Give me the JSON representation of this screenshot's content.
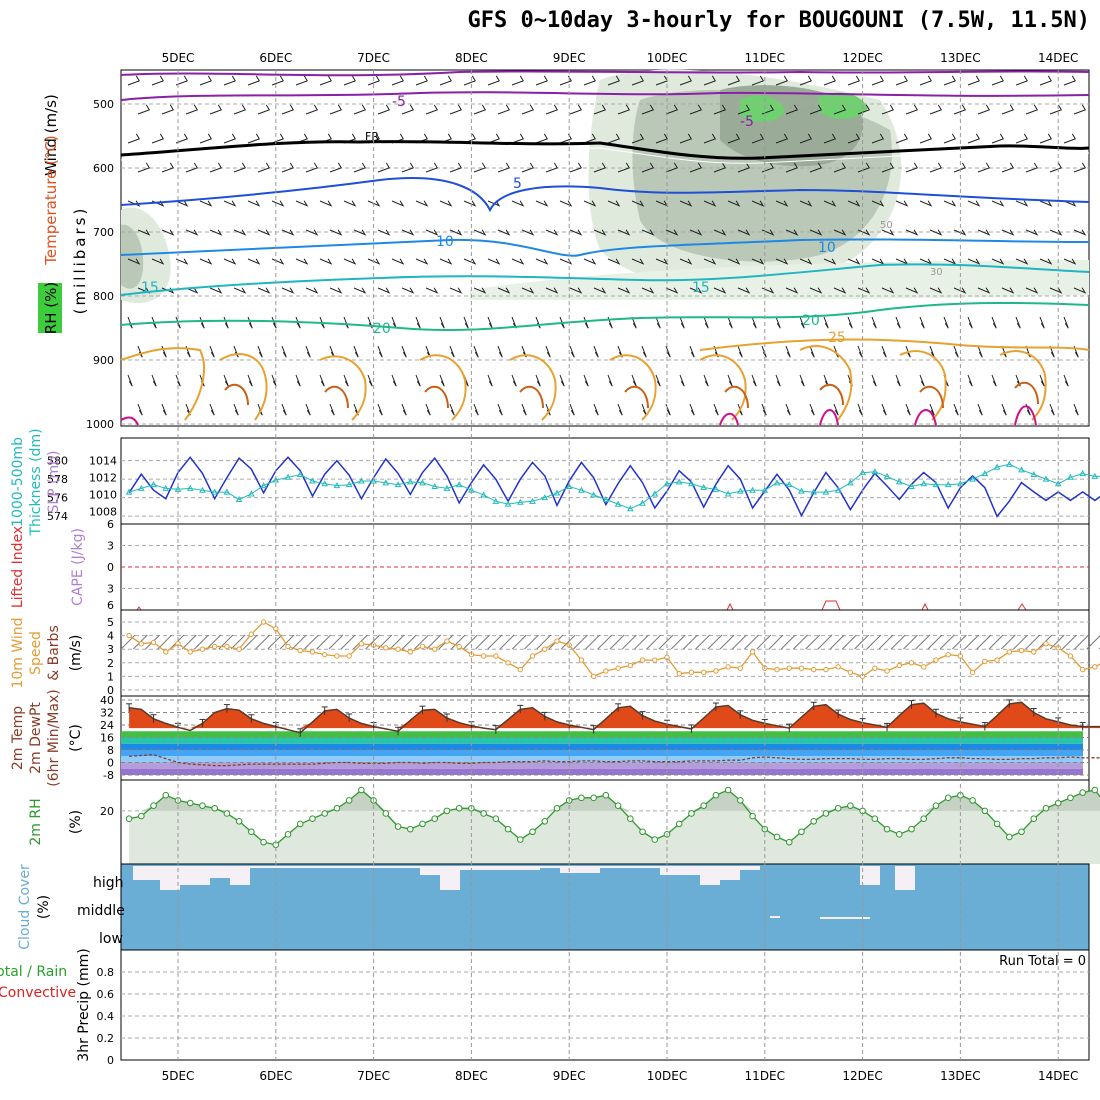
{
  "title": "GFS 0~10day 3-hourly for BOUGOUNI (7.5W, 11.5N)",
  "colors": {
    "temperature": "#e05020",
    "wind": "#000000",
    "rh": "#3c9c3c",
    "thickness": "#22bbbb",
    "slp": "#2233cc",
    "lifted": "#e03030",
    "cape": "#b080d0",
    "wind10": "#e69b35",
    "dewpt": "#a05030",
    "rh2m": "#2e9a2e",
    "cloud": "#6aadd5",
    "precip_total": "#2aa02a",
    "precip_conv": "#e02020"
  },
  "axes": {
    "dates": [
      "5DEC",
      "6DEC",
      "7DEC",
      "8DEC",
      "9DEC",
      "10DEC",
      "11DEC",
      "12DEC",
      "13DEC",
      "14DEC"
    ]
  },
  "panels": {
    "upper": {
      "label_wind": "Wind (m/s)",
      "label_temp": "Temperature (°C)",
      "label_rh": "RH (%)",
      "label_mb": "(millibars)",
      "pressure_ticks": [
        "500",
        "600",
        "700",
        "800",
        "900",
        "1000"
      ],
      "contour_labels": [
        "-5",
        "-5",
        "FR",
        "5",
        "10",
        "10",
        "15",
        "15",
        "20",
        "20",
        "25",
        "30",
        "50"
      ]
    },
    "thickness": {
      "label_thk": "1000-500mb",
      "label_thk2": "Thickness (dm)",
      "label_slp": "SLP (mb)",
      "left_ticks": [
        "580",
        "578",
        "576",
        "574"
      ],
      "right_ticks": [
        "1014",
        "1012",
        "1010",
        "1008"
      ]
    },
    "cape": {
      "label_li": "Lifted Index",
      "label_cape": "CAPE (J/kg)",
      "ticks": [
        "6",
        "3",
        "0",
        "3",
        "6"
      ]
    },
    "wind10": {
      "label1": "10m Wind",
      "label2": "Speed",
      "label3": "& Barbs",
      "unit": "(m/s)",
      "ticks": [
        "5",
        "4",
        "3",
        "2",
        "1",
        "0"
      ]
    },
    "temp2m": {
      "label1": "2m Temp",
      "label2": "2m DewPt",
      "label3": "(6hr Min/Max)",
      "unit": "(°C)",
      "ticks": [
        "40",
        "32",
        "24",
        "16",
        "8",
        "0",
        "-8"
      ]
    },
    "rh2m": {
      "label": "2m RH",
      "unit": "(%)",
      "ticks": [
        "20"
      ]
    },
    "cloud": {
      "label": "Cloud Cover",
      "unit": "(%)",
      "levels": [
        "high",
        "middle",
        "low"
      ]
    },
    "precip": {
      "label_total": "Total / Rain",
      "label_conv": "Convective",
      "label_axis": "3hr Precip (mm)",
      "ticks": [
        "0.8",
        "0.6",
        "0.4",
        "0.2",
        "0"
      ],
      "run_total": "Run Total = 0"
    }
  },
  "chart_data": [
    {
      "type": "line",
      "panel": "thickness-slp",
      "x": [
        "4DEC 12Z",
        "4DEC 15Z",
        "4DEC 18Z",
        "4DEC 21Z",
        "5DEC 00Z",
        "5DEC 03Z",
        "5DEC 06Z",
        "5DEC 09Z",
        "5DEC 12Z",
        "5DEC 15Z",
        "5DEC 18Z",
        "5DEC 21Z",
        "6DEC 00Z",
        "6DEC 03Z",
        "6DEC 06Z",
        "6DEC 09Z",
        "6DEC 12Z",
        "6DEC 15Z",
        "6DEC 18Z",
        "6DEC 21Z",
        "7DEC 00Z",
        "7DEC 03Z",
        "7DEC 06Z",
        "7DEC 09Z",
        "7DEC 12Z",
        "7DEC 15Z",
        "7DEC 18Z",
        "7DEC 21Z",
        "8DEC 00Z",
        "8DEC 03Z",
        "8DEC 06Z",
        "8DEC 09Z",
        "8DEC 12Z",
        "8DEC 15Z",
        "8DEC 18Z",
        "8DEC 21Z",
        "9DEC 00Z",
        "9DEC 03Z",
        "9DEC 06Z",
        "9DEC 09Z",
        "9DEC 12Z",
        "9DEC 15Z",
        "9DEC 18Z",
        "9DEC 21Z",
        "10DEC 00Z",
        "10DEC 03Z",
        "10DEC 06Z",
        "10DEC 09Z",
        "10DEC 12Z",
        "10DEC 15Z",
        "10DEC 18Z",
        "10DEC 21Z",
        "11DEC 00Z",
        "11DEC 03Z",
        "11DEC 06Z",
        "11DEC 09Z",
        "11DEC 12Z",
        "11DEC 15Z",
        "11DEC 18Z",
        "11DEC 21Z",
        "12DEC 00Z",
        "12DEC 03Z",
        "12DEC 06Z",
        "12DEC 09Z",
        "12DEC 12Z",
        "12DEC 15Z",
        "12DEC 18Z",
        "12DEC 21Z",
        "13DEC 00Z",
        "13DEC 03Z",
        "13DEC 06Z",
        "13DEC 09Z",
        "13DEC 12Z",
        "13DEC 15Z",
        "13DEC 18Z",
        "13DEC 21Z",
        "14DEC 00Z",
        "14DEC 03Z",
        "14DEC 06Z",
        "14DEC 09Z",
        "14DEC 12Z"
      ],
      "series": [
        {
          "name": "SLP (mb)",
          "values": [
            1010.2,
            1012.4,
            1010.5,
            1009.5,
            1012.6,
            1014.4,
            1012.5,
            1009.5,
            1012.0,
            1014.3,
            1013.0,
            1010.2,
            1012.8,
            1014.4,
            1012.8,
            1009.8,
            1012.4,
            1014.0,
            1012.3,
            1009.5,
            1012.0,
            1014.2,
            1012.5,
            1010.0,
            1012.6,
            1014.3,
            1012.2,
            1009.0,
            1011.4,
            1013.5,
            1011.8,
            1009.2,
            1011.8,
            1013.8,
            1012.2,
            1008.7,
            1011.6,
            1013.8,
            1012.0,
            1008.8,
            1011.3,
            1013.4,
            1011.4,
            1008.4,
            1010.4,
            1012.8,
            1011.5,
            1008.5,
            1011.2,
            1013.4,
            1011.8,
            1008.4,
            1010.4,
            1012.4,
            1010.5,
            1007.5,
            1010.2,
            1012.6,
            1010.8,
            1008.2,
            1010.5,
            1012.5,
            1011.0,
            1009.4,
            1011.2,
            1012.6,
            1011.4,
            1008.4,
            1010.8,
            1012.2,
            1010.8,
            1007.4,
            1009.2,
            1011.4,
            1010.3,
            1009.3,
            1010.3,
            1009.3,
            1010.3,
            1009.3,
            1010.3
          ]
        },
        {
          "name": "1000-500mb Thickness (dm)",
          "values": [
            576.6,
            577.0,
            577.4,
            577.0,
            576.9,
            577.0,
            576.8,
            576.6,
            576.6,
            575.8,
            576.4,
            577.3,
            577.9,
            578.2,
            578.5,
            577.8,
            577.5,
            577.3,
            577.4,
            577.8,
            577.8,
            577.6,
            577.4,
            577.7,
            577.6,
            577.2,
            577.0,
            577.4,
            576.8,
            576.3,
            575.6,
            575.3,
            575.5,
            575.6,
            576.0,
            576.5,
            577.2,
            576.8,
            576.3,
            575.8,
            575.3,
            574.8,
            575.4,
            576.4,
            577.5,
            577.7,
            577.5,
            577.1,
            576.9,
            576.4,
            576.7,
            576.8,
            576.8,
            577.6,
            577.4,
            576.7,
            576.6,
            576.6,
            576.8,
            577.6,
            578.7,
            578.8,
            578.3,
            577.7,
            577.2,
            577.5,
            577.4,
            577.4,
            577.5,
            578.0,
            578.6,
            579.3,
            579.6,
            579.0,
            578.5,
            578.0,
            577.5,
            578.2,
            578.6,
            578.3,
            578.3
          ]
        }
      ]
    },
    {
      "type": "line",
      "panel": "wind10",
      "x": [
        "4DEC 12Z",
        "4DEC 15Z",
        "4DEC 18Z",
        "4DEC 21Z",
        "5DEC 00Z",
        "5DEC 03Z",
        "5DEC 06Z",
        "5DEC 09Z",
        "5DEC 12Z",
        "5DEC 15Z",
        "5DEC 18Z",
        "5DEC 21Z",
        "6DEC 00Z",
        "6DEC 03Z",
        "6DEC 06Z",
        "6DEC 09Z",
        "6DEC 12Z",
        "6DEC 15Z",
        "6DEC 18Z",
        "6DEC 21Z",
        "7DEC 00Z",
        "7DEC 03Z",
        "7DEC 06Z",
        "7DEC 09Z",
        "7DEC 12Z",
        "7DEC 15Z",
        "7DEC 18Z",
        "7DEC 21Z",
        "8DEC 00Z",
        "8DEC 03Z",
        "8DEC 06Z",
        "8DEC 09Z",
        "8DEC 12Z",
        "8DEC 15Z",
        "8DEC 18Z",
        "8DEC 21Z",
        "9DEC 00Z",
        "9DEC 03Z",
        "9DEC 06Z",
        "9DEC 09Z",
        "9DEC 12Z",
        "9DEC 15Z",
        "9DEC 18Z",
        "9DEC 21Z",
        "10DEC 00Z",
        "10DEC 03Z",
        "10DEC 06Z",
        "10DEC 09Z",
        "10DEC 12Z",
        "10DEC 15Z",
        "10DEC 18Z",
        "10DEC 21Z",
        "11DEC 00Z",
        "11DEC 03Z",
        "11DEC 06Z",
        "11DEC 09Z",
        "11DEC 12Z",
        "11DEC 15Z",
        "11DEC 18Z",
        "11DEC 21Z",
        "12DEC 00Z",
        "12DEC 03Z",
        "12DEC 06Z",
        "12DEC 09Z",
        "12DEC 12Z",
        "12DEC 15Z",
        "12DEC 18Z",
        "12DEC 21Z",
        "13DEC 00Z",
        "13DEC 03Z",
        "13DEC 06Z",
        "13DEC 09Z",
        "13DEC 12Z",
        "13DEC 15Z",
        "13DEC 18Z",
        "13DEC 21Z",
        "14DEC 00Z",
        "14DEC 03Z",
        "14DEC 06Z",
        "14DEC 09Z",
        "14DEC 12Z"
      ],
      "series": [
        {
          "name": "10m Wind Speed",
          "values": [
            4.0,
            3.4,
            3.5,
            2.8,
            3.4,
            2.8,
            3.0,
            3.2,
            3.2,
            3.0,
            4.1,
            5.0,
            4.5,
            3.2,
            2.9,
            2.8,
            2.6,
            2.5,
            2.5,
            3.4,
            3.3,
            3.1,
            3.0,
            2.8,
            3.2,
            3.0,
            3.6,
            3.2,
            2.6,
            2.5,
            2.5,
            2.0,
            1.5,
            2.5,
            3.0,
            3.6,
            3.3,
            2.2,
            1.0,
            1.4,
            1.6,
            1.8,
            2.2,
            2.2,
            2.4,
            1.2,
            1.3,
            1.3,
            1.4,
            1.7,
            1.6,
            2.8,
            1.6,
            1.5,
            1.6,
            1.6,
            1.5,
            1.5,
            1.7,
            1.3,
            1.0,
            1.6,
            1.4,
            1.8,
            2.0,
            1.7,
            2.2,
            2.6,
            2.5,
            1.3,
            2.1,
            2.2,
            2.8,
            2.9,
            2.8,
            3.4,
            3.1,
            2.5,
            1.5,
            1.7,
            2.2
          ]
        }
      ]
    },
    {
      "type": "line",
      "panel": "temp2m",
      "x": [
        "4DEC 12Z",
        "4DEC 15Z",
        "4DEC 18Z",
        "4DEC 21Z",
        "5DEC 00Z",
        "5DEC 03Z",
        "5DEC 06Z",
        "5DEC 09Z",
        "5DEC 12Z",
        "5DEC 15Z",
        "5DEC 18Z",
        "5DEC 21Z",
        "6DEC 00Z",
        "6DEC 03Z",
        "6DEC 06Z",
        "6DEC 09Z",
        "6DEC 12Z",
        "6DEC 15Z",
        "6DEC 18Z",
        "6DEC 21Z",
        "7DEC 00Z",
        "7DEC 03Z",
        "7DEC 06Z",
        "7DEC 09Z",
        "7DEC 12Z",
        "7DEC 15Z",
        "7DEC 18Z",
        "7DEC 21Z",
        "8DEC 00Z",
        "8DEC 03Z",
        "8DEC 06Z",
        "8DEC 09Z",
        "8DEC 12Z",
        "8DEC 15Z",
        "8DEC 18Z",
        "8DEC 21Z",
        "9DEC 00Z",
        "9DEC 03Z",
        "9DEC 06Z",
        "9DEC 09Z",
        "9DEC 12Z",
        "9DEC 15Z",
        "9DEC 18Z",
        "9DEC 21Z",
        "10DEC 00Z",
        "10DEC 03Z",
        "10DEC 06Z",
        "10DEC 09Z",
        "10DEC 12Z",
        "10DEC 15Z",
        "10DEC 18Z",
        "10DEC 21Z",
        "11DEC 00Z",
        "11DEC 03Z",
        "11DEC 06Z",
        "11DEC 09Z",
        "11DEC 12Z",
        "11DEC 15Z",
        "11DEC 18Z",
        "11DEC 21Z",
        "12DEC 00Z",
        "12DEC 03Z",
        "12DEC 06Z",
        "12DEC 09Z",
        "12DEC 12Z",
        "12DEC 15Z",
        "12DEC 18Z",
        "12DEC 21Z",
        "13DEC 00Z",
        "13DEC 03Z",
        "13DEC 06Z",
        "13DEC 09Z",
        "13DEC 12Z",
        "13DEC 15Z",
        "13DEC 18Z",
        "13DEC 21Z",
        "14DEC 00Z",
        "14DEC 03Z",
        "14DEC 06Z",
        "14DEC 09Z",
        "14DEC 12Z"
      ],
      "series": [
        {
          "name": "2m Temp",
          "values": [
            35.0,
            34.0,
            28.0,
            25.0,
            22.5,
            20.5,
            25.0,
            32.0,
            34.5,
            33.5,
            28.0,
            25.0,
            23.0,
            21.0,
            19.0,
            26.0,
            33.0,
            34.0,
            28.5,
            25.0,
            23.0,
            21.5,
            20.0,
            27.0,
            33.5,
            34.0,
            28.5,
            25.5,
            23.5,
            22.0,
            21.0,
            27.5,
            34.0,
            35.0,
            29.5,
            26.0,
            24.0,
            22.5,
            21.0,
            28.0,
            35.0,
            36.0,
            30.0,
            26.5,
            24.5,
            23.0,
            21.5,
            28.5,
            35.5,
            36.5,
            30.5,
            27.0,
            25.0,
            23.5,
            22.0,
            29.0,
            36.0,
            37.0,
            31.0,
            27.5,
            25.5,
            24.0,
            22.5,
            30.0,
            37.0,
            38.0,
            31.5,
            28.0,
            26.0,
            24.5,
            23.0,
            30.0,
            37.5,
            38.5,
            32.0,
            28.0,
            26.0,
            24.0,
            23.0,
            23.0,
            23.0
          ]
        },
        {
          "name": "2m DewPt",
          "values": [
            4.0,
            4.5,
            5.0,
            2.5,
            0.0,
            -1.0,
            -1.5,
            -2.0,
            -2.0,
            -1.5,
            -1.0,
            -1.0,
            -1.0,
            -1.0,
            -1.0,
            -1.0,
            -0.5,
            0.0,
            0.0,
            -0.5,
            -0.5,
            -0.5,
            0.0,
            0.0,
            -0.5,
            0.0,
            0.0,
            -0.5,
            -0.5,
            0.0,
            0.0,
            0.5,
            0.5,
            0.5,
            1.0,
            0.5,
            0.5,
            1.0,
            1.0,
            0.5,
            0.5,
            1.0,
            1.0,
            0.5,
            0.5,
            0.5,
            1.0,
            1.0,
            1.0,
            1.5,
            1.5,
            3.0,
            3.5,
            3.0,
            2.5,
            2.0,
            2.0,
            2.5,
            2.5,
            2.5,
            2.0,
            2.0,
            2.5,
            2.5,
            2.0,
            2.0,
            2.5,
            3.0,
            3.0,
            2.5,
            2.5,
            2.0,
            2.0,
            2.5,
            2.5,
            3.0,
            3.0,
            3.5,
            3.0,
            3.0,
            3.0
          ]
        }
      ]
    },
    {
      "type": "line",
      "panel": "rh2m",
      "x": [
        "4DEC 12Z",
        "4DEC 15Z",
        "4DEC 18Z",
        "4DEC 21Z",
        "5DEC 00Z",
        "5DEC 03Z",
        "5DEC 06Z",
        "5DEC 09Z",
        "5DEC 12Z",
        "5DEC 15Z",
        "5DEC 18Z",
        "5DEC 21Z",
        "6DEC 00Z",
        "6DEC 03Z",
        "6DEC 06Z",
        "6DEC 09Z",
        "6DEC 12Z",
        "6DEC 15Z",
        "6DEC 18Z",
        "6DEC 21Z",
        "7DEC 00Z",
        "7DEC 03Z",
        "7DEC 06Z",
        "7DEC 09Z",
        "7DEC 12Z",
        "7DEC 15Z",
        "7DEC 18Z",
        "7DEC 21Z",
        "8DEC 00Z",
        "8DEC 03Z",
        "8DEC 06Z",
        "8DEC 09Z",
        "8DEC 12Z",
        "8DEC 15Z",
        "8DEC 18Z",
        "8DEC 21Z",
        "9DEC 00Z",
        "9DEC 03Z",
        "9DEC 06Z",
        "9DEC 09Z",
        "9DEC 12Z",
        "9DEC 15Z",
        "9DEC 18Z",
        "9DEC 21Z",
        "10DEC 00Z",
        "10DEC 03Z",
        "10DEC 06Z",
        "10DEC 09Z",
        "10DEC 12Z",
        "10DEC 15Z",
        "10DEC 18Z",
        "10DEC 21Z",
        "11DEC 00Z",
        "11DEC 03Z",
        "11DEC 06Z",
        "11DEC 09Z",
        "11DEC 12Z",
        "11DEC 15Z",
        "11DEC 18Z",
        "11DEC 21Z",
        "12DEC 00Z",
        "12DEC 03Z",
        "12DEC 06Z",
        "12DEC 09Z",
        "12DEC 12Z",
        "12DEC 15Z",
        "12DEC 18Z",
        "12DEC 21Z",
        "13DEC 00Z",
        "13DEC 03Z",
        "13DEC 06Z",
        "13DEC 09Z",
        "13DEC 12Z",
        "13DEC 15Z",
        "13DEC 18Z",
        "13DEC 21Z",
        "14DEC 00Z",
        "14DEC 03Z",
        "14DEC 06Z",
        "14DEC 09Z",
        "14DEC 12Z"
      ],
      "series": [
        {
          "name": "2m RH",
          "values": [
            17,
            18,
            22,
            26,
            24,
            23,
            22,
            21,
            19,
            16,
            12,
            8,
            7,
            11,
            15,
            17,
            19,
            21,
            24,
            28,
            24,
            19,
            14,
            13,
            15,
            17,
            20,
            21,
            21,
            19,
            17,
            13,
            9,
            12,
            16,
            21,
            24,
            25,
            25,
            26,
            22,
            17,
            12,
            9,
            11,
            15,
            19,
            22,
            26,
            28,
            24,
            18,
            13,
            10,
            8,
            12,
            16,
            19,
            21,
            22,
            20,
            17,
            13,
            11,
            13,
            17,
            22,
            25,
            26,
            24,
            20,
            15,
            10,
            12,
            17,
            21,
            23,
            25,
            27,
            28,
            22
          ]
        }
      ]
    },
    {
      "type": "area",
      "panel": "cloud",
      "levels": [
        "high",
        "middle",
        "low"
      ],
      "series": [
        {
          "name": "Cloud Cover",
          "values": []
        }
      ]
    },
    {
      "type": "bar",
      "panel": "precip",
      "series": [
        {
          "name": "Total / Rain",
          "values": []
        },
        {
          "name": "Convective",
          "values": []
        }
      ],
      "ylim": [
        0,
        0.9
      ]
    }
  ]
}
